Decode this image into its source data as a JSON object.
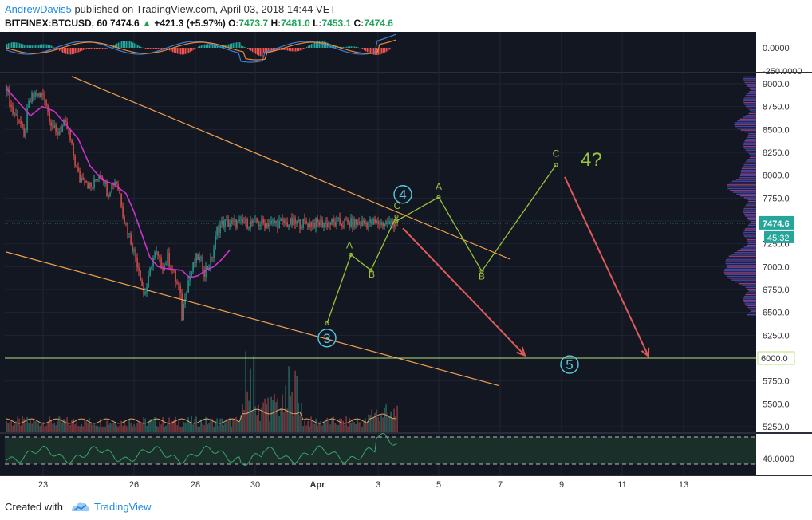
{
  "header": {
    "author": "AndrewDavis5",
    "published": "published on TradingView.com, April 03, 2018 14:44 VET",
    "symbol": "BITFINEX:BTCUSD, 60",
    "last": "7474.6",
    "change": "+421.3 (+5.97%)",
    "o_label": "O:",
    "o": "7473.7",
    "h_label": "H:",
    "h": "7481.0",
    "l_label": "L:",
    "l": "7453.1",
    "c_label": "C:",
    "c": "7474.6"
  },
  "footer": {
    "created": "Created with",
    "brand": "TradingView"
  },
  "colors": {
    "background": "#131722",
    "grid": "#1f2533",
    "up": "#26a69a",
    "down": "#ef5350",
    "ma": "#cc33cc",
    "channel": "#f0a050",
    "wave": "#9ac43a",
    "arrow": "#e05a5a",
    "circle": "#5ac8e0",
    "support": "#b6e37a"
  },
  "chart_data": {
    "type": "candlestick",
    "price_axis": {
      "ticks": [
        "9000.0",
        "8750.0",
        "8500.0",
        "8250.0",
        "8000.0",
        "7750.0",
        "7500.0",
        "7250.0",
        "7000.0",
        "6750.0",
        "6500.0",
        "6250.0",
        "6000.0",
        "5750.0",
        "5500.0",
        "5250.0"
      ],
      "range": [
        5200,
        9150
      ]
    },
    "time_axis": {
      "ticks": [
        "23",
        "26",
        "28",
        "30",
        "Apr",
        "3",
        "5",
        "7",
        "9",
        "11",
        "13"
      ]
    },
    "last_price": {
      "label": "7474.6",
      "value": 7474.6,
      "countdown": "45:32"
    },
    "support": {
      "label": "6000.0",
      "value": 6000
    },
    "macd_panel": {
      "tick_zero": "0.0000",
      "tick_low": "-250.0000"
    },
    "rsi_panel": {
      "tick": "40.0000"
    },
    "price_path": [
      [
        0,
        9000
      ],
      [
        5,
        9100
      ],
      [
        10,
        8900
      ],
      [
        15,
        8700
      ],
      [
        20,
        8650
      ],
      [
        25,
        8600
      ],
      [
        30,
        8380
      ],
      [
        35,
        8750
      ],
      [
        40,
        8850
      ],
      [
        45,
        8900
      ],
      [
        50,
        8850
      ],
      [
        55,
        8900
      ],
      [
        60,
        8700
      ],
      [
        65,
        8550
      ],
      [
        70,
        8450
      ],
      [
        75,
        8500
      ],
      [
        80,
        8550
      ],
      [
        85,
        8500
      ],
      [
        90,
        8300
      ],
      [
        95,
        8100
      ],
      [
        100,
        7950
      ],
      [
        105,
        8000
      ],
      [
        110,
        7900
      ],
      [
        115,
        7850
      ],
      [
        120,
        7950
      ],
      [
        125,
        8050
      ],
      [
        130,
        7950
      ],
      [
        135,
        7800
      ],
      [
        140,
        7900
      ],
      [
        145,
        7950
      ],
      [
        150,
        7800
      ],
      [
        155,
        7550
      ],
      [
        160,
        7400
      ],
      [
        165,
        7250
      ],
      [
        170,
        7100
      ],
      [
        175,
        6950
      ],
      [
        180,
        6700
      ],
      [
        185,
        6800
      ],
      [
        190,
        7050
      ],
      [
        195,
        7150
      ],
      [
        200,
        7050
      ],
      [
        205,
        7000
      ],
      [
        210,
        7100
      ],
      [
        215,
        7000
      ],
      [
        220,
        6850
      ],
      [
        225,
        6750
      ],
      [
        228,
        6450
      ],
      [
        232,
        6700
      ],
      [
        236,
        6850
      ],
      [
        240,
        6950
      ],
      [
        244,
        7050
      ],
      [
        248,
        7100
      ],
      [
        252,
        7050
      ],
      [
        256,
        6950
      ],
      [
        260,
        7000
      ],
      [
        264,
        7050
      ],
      [
        268,
        7200
      ],
      [
        272,
        7400
      ],
      [
        276,
        7450
      ],
      [
        280,
        7475
      ]
    ],
    "ma_path": [
      [
        0,
        8950
      ],
      [
        15,
        8800
      ],
      [
        30,
        8650
      ],
      [
        45,
        8750
      ],
      [
        60,
        8700
      ],
      [
        75,
        8550
      ],
      [
        90,
        8400
      ],
      [
        105,
        8100
      ],
      [
        120,
        7950
      ],
      [
        135,
        7900
      ],
      [
        150,
        7800
      ],
      [
        160,
        7600
      ],
      [
        170,
        7350
      ],
      [
        180,
        7100
      ],
      [
        190,
        7000
      ],
      [
        200,
        6980
      ],
      [
        210,
        6970
      ],
      [
        220,
        6960
      ],
      [
        230,
        6880
      ],
      [
        240,
        6900
      ],
      [
        250,
        6960
      ],
      [
        260,
        7000
      ],
      [
        270,
        7080
      ],
      [
        280,
        7180
      ]
    ],
    "channel_upper": {
      "from": [
        90,
        9080
      ],
      "to": [
        640,
        7080
      ]
    },
    "channel_lower": {
      "from": [
        8,
        7160
      ],
      "to": [
        625,
        5700
      ]
    },
    "waves": [
      {
        "points": [
          [
            410,
            6380
          ],
          [
            440,
            7130
          ],
          [
            465,
            6960
          ],
          [
            497,
            7550
          ]
        ],
        "labels": [
          {
            "t": "A",
            "x": 438,
            "y": 7200
          },
          {
            "t": "B",
            "x": 466,
            "y": 6880
          },
          {
            "t": "C",
            "x": 498,
            "y": 7630
          }
        ]
      },
      {
        "points": [
          [
            497,
            7500
          ],
          [
            550,
            7760
          ],
          [
            604,
            6950
          ],
          [
            697,
            8110
          ]
        ],
        "labels": [
          {
            "t": "A",
            "x": 550,
            "y": 7840
          },
          {
            "t": "B",
            "x": 604,
            "y": 6860
          },
          {
            "t": "C",
            "x": 697,
            "y": 8200
          }
        ]
      }
    ],
    "wave_circles": [
      {
        "label": "3",
        "x": 410,
        "y": 6220
      },
      {
        "label": "4",
        "x": 505,
        "y": 7790
      },
      {
        "label": "5",
        "x": 714,
        "y": 5930
      }
    ],
    "annotation": {
      "text": "4?",
      "x": 728,
      "y": 8100
    },
    "arrows": [
      {
        "from": [
          505,
          7420
        ],
        "to": [
          658,
          6030
        ]
      },
      {
        "from": [
          708,
          7980
        ],
        "to": [
          813,
          6020
        ]
      }
    ]
  }
}
